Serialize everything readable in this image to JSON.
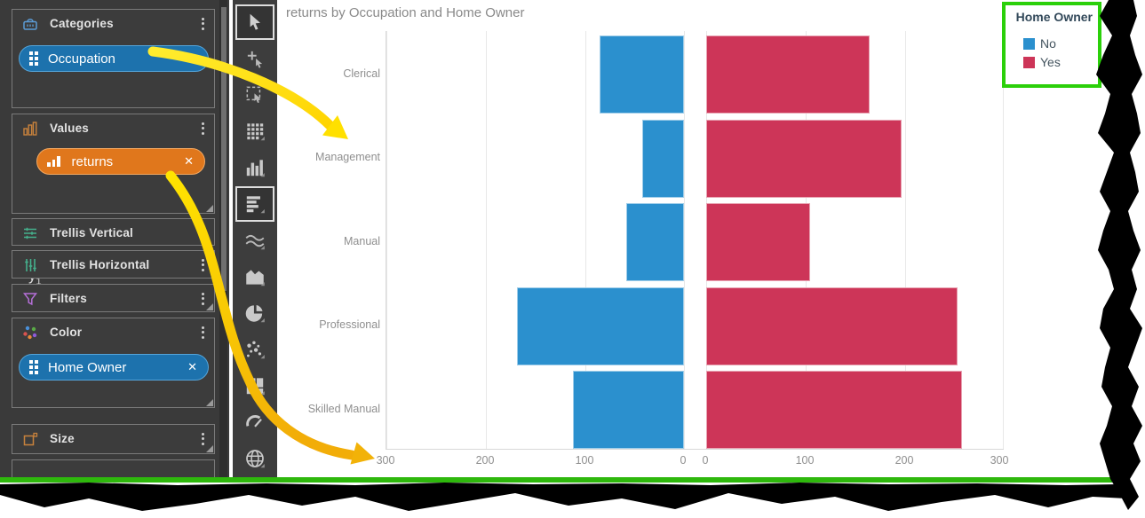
{
  "chart": {
    "title": "returns by Occupation and Home Owner",
    "legend": {
      "title": "Home Owner",
      "items": [
        {
          "label": "No",
          "color": "#2B90CE"
        },
        {
          "label": "Yes",
          "color": "#CD3558"
        }
      ]
    }
  },
  "chart_data": {
    "type": "bar",
    "orientation": "horizontal-diverging",
    "title": "returns by Occupation and Home Owner",
    "categories": [
      "Clerical",
      "Management",
      "Manual",
      "Professional",
      "Skilled Manual"
    ],
    "series": [
      {
        "name": "No",
        "color": "#2B90CE",
        "side": "left",
        "values": [
          85,
          42,
          58,
          168,
          112
        ]
      },
      {
        "name": "Yes",
        "color": "#CD3558",
        "side": "right",
        "values": [
          165,
          197,
          105,
          253,
          258
        ]
      }
    ],
    "axis": {
      "max": 300,
      "left_ticks": [
        "300",
        "200",
        "100",
        "0"
      ],
      "right_ticks": [
        "0",
        "100",
        "200",
        "300"
      ],
      "grid": true
    },
    "legend_position": "top-right"
  },
  "sidebar": {
    "panels": [
      {
        "label": "Categories",
        "pill": "Occupation"
      },
      {
        "label": "Values",
        "pill": "returns"
      },
      {
        "label": "Trellis Vertical"
      },
      {
        "label": "Trellis Horizontal"
      },
      {
        "label": "Filters"
      },
      {
        "label": "Color",
        "pill": "Home Owner"
      },
      {
        "label": "Size"
      }
    ],
    "values_axis": {
      "letter": "y",
      "sub": "1"
    },
    "close_glyph": "✕"
  },
  "toolbar": {
    "tools": [
      "select",
      "add-visualization",
      "marquee-select",
      "table",
      "column-chart",
      "bar-chart",
      "line-chart",
      "area-chart",
      "pie-chart",
      "scatter-plot",
      "treemap",
      "gauge",
      "map"
    ],
    "active": [
      "select",
      "bar-chart"
    ]
  },
  "annotations": {
    "highlight_green": "#2BD00A",
    "underline_green": "#2EB80C",
    "arrow_yellow": "#FFDD00"
  }
}
